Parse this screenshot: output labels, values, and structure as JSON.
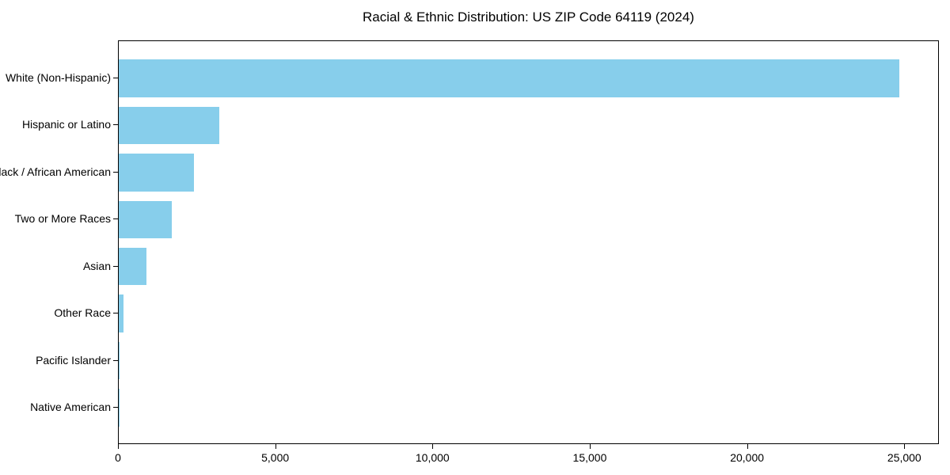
{
  "chart_data": {
    "type": "bar",
    "orientation": "horizontal",
    "title": "Racial & Ethnic Distribution: US ZIP Code 64119 (2024)",
    "categories": [
      "White (Non-Hispanic)",
      "Hispanic or Latino",
      "Black / African American",
      "Two or More Races",
      "Asian",
      "Other Race",
      "Pacific Islander",
      "Native American"
    ],
    "values": [
      24820,
      3200,
      2400,
      1690,
      890,
      140,
      20,
      10
    ],
    "xlabel": "",
    "ylabel": "",
    "xlim": [
      0,
      26100
    ],
    "xticks": [
      0,
      5000,
      10000,
      15000,
      20000,
      25000
    ],
    "xtick_labels": [
      "0",
      "5,000",
      "10,000",
      "15,000",
      "20,000",
      "25,000"
    ],
    "bar_color": "#87CEEB",
    "grid": false,
    "legend": null,
    "frame": "full-box"
  }
}
